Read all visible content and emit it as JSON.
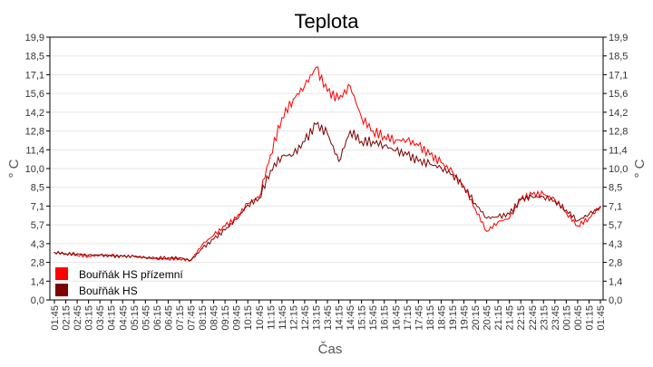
{
  "chart_data": {
    "type": "line",
    "title": "Teplota",
    "xlabel": "Čas",
    "ylabel": "° C",
    "ylabel_right": "° C",
    "ylim": [
      0,
      19.9
    ],
    "yticks": [
      "0,0",
      "1,4",
      "2,8",
      "4,3",
      "5,7",
      "7,1",
      "8,5",
      "10,0",
      "11,4",
      "12,8",
      "14,2",
      "15,6",
      "17,1",
      "18,5",
      "19,9"
    ],
    "grid": true,
    "legend_position": "bottom-left",
    "x": [
      "01:45",
      "02:15",
      "02:45",
      "03:15",
      "03:45",
      "04:15",
      "04:45",
      "05:15",
      "05:45",
      "06:15",
      "06:45",
      "07:15",
      "07:45",
      "08:15",
      "08:45",
      "09:15",
      "09:45",
      "10:15",
      "10:45",
      "11:15",
      "11:45",
      "12:15",
      "12:45",
      "13:15",
      "13:45",
      "14:15",
      "14:45",
      "15:15",
      "15:45",
      "16:15",
      "16:45",
      "17:15",
      "17:45",
      "18:15",
      "18:45",
      "19:15",
      "19:45",
      "20:15",
      "20:45",
      "21:15",
      "21:45",
      "22:15",
      "22:45",
      "23:15",
      "23:45",
      "00:15",
      "00:45",
      "01:15",
      "01:45"
    ],
    "series": [
      {
        "name": "Bouřňák HS přízemní",
        "color": "#ff0000",
        "values": [
          3.6,
          3.5,
          3.4,
          3.3,
          3.4,
          3.4,
          3.3,
          3.3,
          3.2,
          3.1,
          3.1,
          3.1,
          3.0,
          4.2,
          4.9,
          5.6,
          6.2,
          7.3,
          7.8,
          11.0,
          13.8,
          15.2,
          16.2,
          17.6,
          15.8,
          15.2,
          16.2,
          13.8,
          12.8,
          12.4,
          12.1,
          12.1,
          11.7,
          11.0,
          10.4,
          9.7,
          8.6,
          6.9,
          5.2,
          5.9,
          6.2,
          7.6,
          8.0,
          8.0,
          7.6,
          6.6,
          5.6,
          6.2,
          7.1
        ]
      },
      {
        "name": "Bouřňák HS",
        "color": "#800000",
        "values": [
          3.6,
          3.5,
          3.5,
          3.4,
          3.4,
          3.3,
          3.3,
          3.3,
          3.2,
          3.2,
          3.2,
          3.2,
          3.0,
          3.9,
          4.6,
          5.3,
          6.1,
          7.2,
          7.7,
          9.8,
          10.9,
          11.0,
          12.0,
          13.3,
          12.6,
          10.5,
          12.8,
          12.0,
          12.0,
          11.7,
          11.3,
          11.0,
          10.5,
          10.3,
          10.0,
          9.5,
          8.6,
          7.3,
          6.2,
          6.3,
          6.5,
          7.6,
          7.8,
          7.8,
          7.5,
          6.8,
          6.0,
          6.5,
          7.0
        ]
      }
    ]
  }
}
